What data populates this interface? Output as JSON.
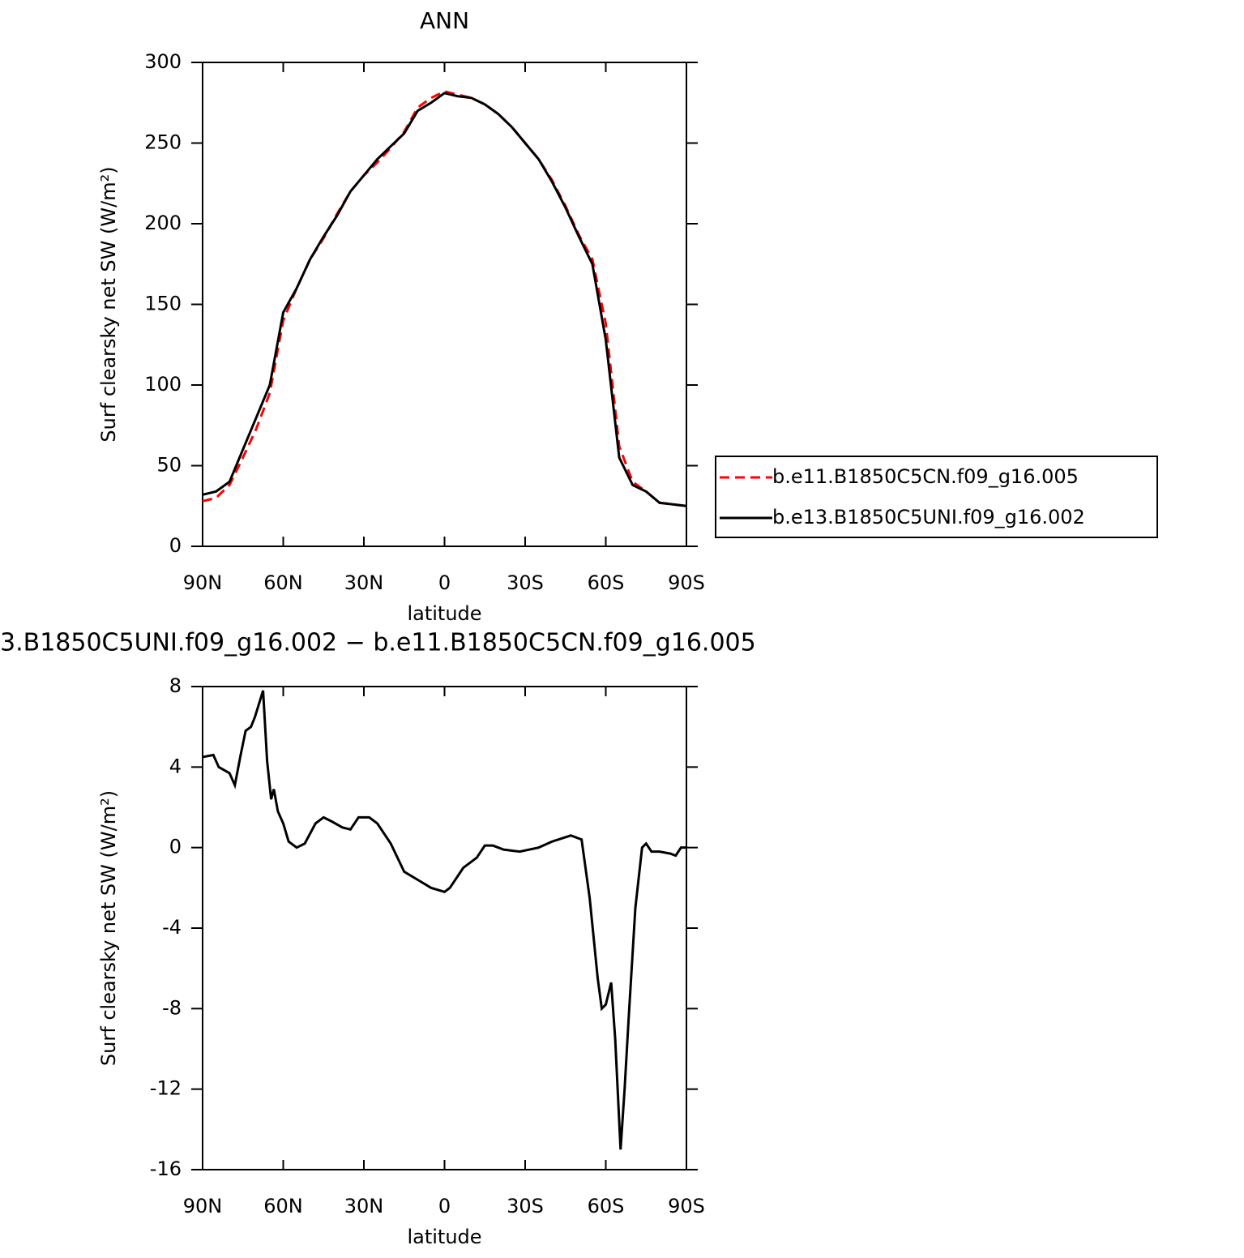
{
  "chart_data": [
    {
      "type": "line",
      "title": "ANN",
      "x_label": "latitude",
      "y_label": "Surf clearsky net SW (W/m²)",
      "x": [
        90,
        85,
        80,
        75,
        70,
        65,
        60,
        55,
        50,
        45,
        40,
        35,
        30,
        25,
        20,
        15,
        10,
        5,
        0,
        -5,
        -10,
        -15,
        -20,
        -25,
        -30,
        -35,
        -40,
        -45,
        -50,
        -55,
        -60,
        -65,
        -70,
        -75,
        -80,
        -85,
        -90
      ],
      "series": [
        {
          "name": "b.e11.B1850C5CN.f09_g16.005",
          "color": "#ff0000",
          "style": "dashed",
          "values": [
            28,
            30,
            38,
            55,
            73,
            95,
            140,
            160,
            178,
            191,
            206,
            220,
            230,
            238,
            247,
            257,
            272,
            278,
            282,
            280,
            278,
            274,
            268,
            260,
            250,
            240,
            227,
            211,
            193,
            178,
            138,
            62,
            40,
            34,
            27,
            26,
            25
          ]
        },
        {
          "name": "b.e13.B1850C5UNI.f09_g16.002",
          "color": "#000000",
          "style": "solid",
          "values": [
            32,
            34,
            40,
            60,
            80,
            100,
            145,
            160,
            178,
            192,
            205,
            220,
            230,
            240,
            248,
            256,
            270,
            275,
            281,
            279,
            278,
            274,
            268,
            260,
            250,
            240,
            226,
            210,
            192,
            175,
            128,
            55,
            38,
            34,
            27,
            26,
            25
          ]
        }
      ],
      "xlim": [
        90,
        -90
      ],
      "xticks": [
        {
          "value": 90,
          "label": "90N"
        },
        {
          "value": 60,
          "label": "60N"
        },
        {
          "value": 30,
          "label": "30N"
        },
        0,
        {
          "value": -30,
          "label": "30S"
        },
        {
          "value": -60,
          "label": "60S"
        },
        {
          "value": -90,
          "label": "90S"
        }
      ],
      "ylim": [
        0,
        300
      ],
      "yticks": [
        0,
        50,
        100,
        150,
        200,
        250,
        300
      ],
      "legend": "right"
    },
    {
      "type": "line",
      "title": "3.B1850C5UNI.f09_g16.002 − b.e11.B1850C5CN.f09_g16.005",
      "x_label": "latitude",
      "y_label": "Surf clearsky net SW (W/m²)",
      "x": [
        90,
        86,
        84,
        80,
        78,
        76,
        74,
        72,
        70.5,
        67.5,
        66,
        64.5,
        63.5,
        62,
        60,
        58,
        55,
        52,
        48,
        45,
        42,
        38,
        35,
        32,
        28,
        25,
        20,
        15,
        10,
        5,
        0,
        -2,
        -7,
        -12,
        -15,
        -18,
        -22,
        -28,
        -35,
        -40,
        -47,
        -51,
        -54,
        -57,
        -58.5,
        -60,
        -62,
        -63.5,
        -65.5,
        -67,
        -68.5,
        -71,
        -73.5,
        -75,
        -77,
        -80,
        -84,
        -86,
        -88,
        -90
      ],
      "series": [
        {
          "name": null,
          "color": "#000000",
          "style": "solid",
          "values": [
            4.5,
            4.6,
            4.0,
            3.7,
            3.1,
            4.5,
            5.8,
            6.0,
            6.5,
            7.8,
            4.3,
            2.4,
            2.9,
            1.8,
            1.2,
            0.3,
            0.0,
            0.2,
            1.2,
            1.5,
            1.3,
            1.0,
            0.9,
            1.5,
            1.5,
            1.2,
            0.2,
            -1.2,
            -1.6,
            -2.0,
            -2.2,
            -2.0,
            -1.0,
            -0.5,
            0.1,
            0.1,
            -0.1,
            -0.2,
            0.0,
            0.3,
            0.6,
            0.4,
            -2.5,
            -6.5,
            -8.0,
            -7.8,
            -6.7,
            -9.5,
            -15.0,
            -12,
            -8.5,
            -3,
            0.0,
            0.2,
            -0.2,
            -0.2,
            -0.3,
            -0.4,
            0.0,
            0.0
          ]
        }
      ],
      "xlim": [
        90,
        -90
      ],
      "xticks": [
        {
          "value": 90,
          "label": "90N"
        },
        {
          "value": 60,
          "label": "60N"
        },
        {
          "value": 30,
          "label": "30N"
        },
        0,
        {
          "value": -30,
          "label": "30S"
        },
        {
          "value": -60,
          "label": "60S"
        },
        {
          "value": -90,
          "label": "90S"
        }
      ],
      "ylim": [
        -16,
        8
      ],
      "yticks": [
        -16,
        -12,
        -8,
        -4,
        0,
        4,
        8
      ]
    }
  ]
}
